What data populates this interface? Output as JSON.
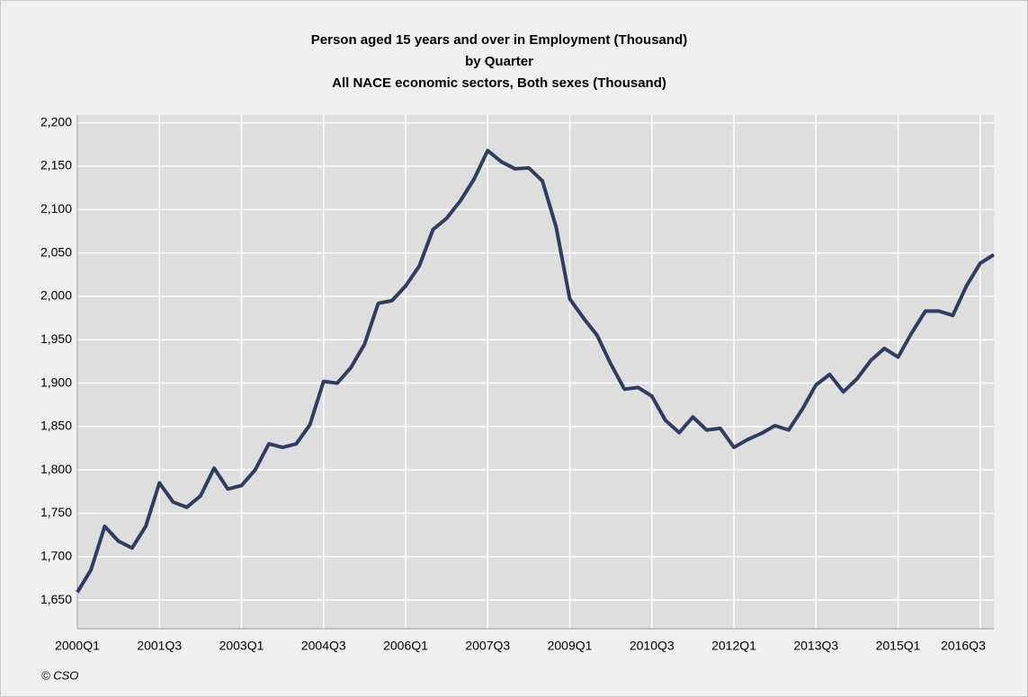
{
  "chart_data": {
    "type": "line",
    "title": [
      "Person aged 15 years and over in Employment (Thousand)",
      "by Quarter",
      "All NACE economic sectors, Both sexes (Thousand)"
    ],
    "source": "© CSO",
    "categories": [
      "2000Q1",
      null,
      null,
      null,
      null,
      null,
      "2001Q3",
      null,
      null,
      null,
      null,
      null,
      "2003Q1",
      null,
      null,
      null,
      null,
      null,
      "2004Q3",
      null,
      null,
      null,
      null,
      null,
      "2006Q1",
      null,
      null,
      null,
      null,
      null,
      "2007Q3",
      null,
      null,
      null,
      null,
      null,
      "2009Q1",
      null,
      null,
      null,
      null,
      null,
      "2010Q3",
      null,
      null,
      null,
      null,
      null,
      "2012Q1",
      null,
      null,
      null,
      null,
      null,
      "2013Q3",
      null,
      null,
      null,
      null,
      null,
      "2015Q1",
      null,
      null,
      null,
      null,
      null,
      "2016Q3",
      null
    ],
    "series": [
      {
        "name": "All NACE economic sectors, Both sexes",
        "color": "#2f3d62",
        "values": [
          1659,
          1685,
          1735,
          1718,
          1710,
          1735,
          1785,
          1763,
          1757,
          1770,
          1802,
          1778,
          1782,
          1800,
          1830,
          1826,
          1830,
          1852,
          1902,
          1900,
          1918,
          1945,
          1992,
          1995,
          2012,
          2035,
          2077,
          2090,
          2110,
          2135,
          2168,
          2155,
          2147,
          2148,
          2133,
          2080,
          1997,
          1975,
          1955,
          1922,
          1893,
          1895,
          1885,
          1857,
          1843,
          1861,
          1846,
          1848,
          1826,
          1835,
          1842,
          1851,
          1846,
          1870,
          1898,
          1910,
          1890,
          1905,
          1926,
          1940,
          1930,
          1958,
          1983,
          1983,
          1978,
          2012,
          2038,
          2048
        ]
      }
    ],
    "ylim": [
      1617,
      2209
    ],
    "yticks": [
      {
        "value": 1650,
        "label": "1,650"
      },
      {
        "value": 1700,
        "label": "1,700"
      },
      {
        "value": 1750,
        "label": "1,750"
      },
      {
        "value": 1800,
        "label": "1,800"
      },
      {
        "value": 1850,
        "label": "1,850"
      },
      {
        "value": 1900,
        "label": "1,900"
      },
      {
        "value": 1950,
        "label": "1,950"
      },
      {
        "value": 2000,
        "label": "2,000"
      },
      {
        "value": 2050,
        "label": "2,050"
      },
      {
        "value": 2100,
        "label": "2,100"
      },
      {
        "value": 2150,
        "label": "2,150"
      },
      {
        "value": 2200,
        "label": "2,200"
      }
    ],
    "grid": true
  }
}
